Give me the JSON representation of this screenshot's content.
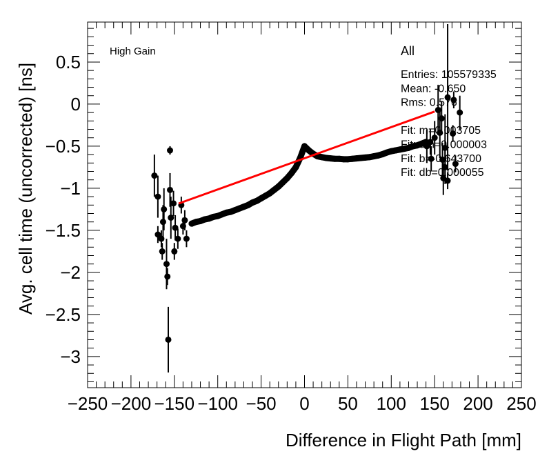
{
  "chart_data": {
    "type": "scatter",
    "xlabel": "Difference in Flight Path [mm]",
    "ylabel": "Avg. cell time (uncorrected) [ns]",
    "xlim": [
      -250,
      250
    ],
    "ylim": [
      -3.37,
      0.975
    ],
    "xticks": [
      -250,
      -200,
      -150,
      -100,
      -50,
      0,
      50,
      100,
      150,
      200,
      250
    ],
    "xtick_labels": [
      "−250",
      "−200",
      "−150",
      "−100",
      "−50",
      "0",
      "50",
      "100",
      "150",
      "200",
      "250"
    ],
    "yticks": [
      0.5,
      0,
      -0.5,
      -1,
      -1.5,
      -2,
      -2.5,
      -3
    ],
    "ytick_labels": [
      "0.5",
      "0",
      "−0.5",
      "−1",
      "−1.5",
      "−2",
      "−2.5",
      "−3"
    ],
    "grid": false,
    "marker_color": "#000000",
    "fit_color": "#ff0000",
    "annotations": {
      "gain": "High Gain"
    },
    "stats": {
      "title": "All",
      "lines": [
        "Entries: 105579335",
        "Mean: -0.650",
        "Rms: 0.576",
        "",
        "Fit: m=0.003705",
        "Fit: dm=0.000003",
        "Fit: b=-0.643700",
        "Fit: db=0.000055"
      ]
    },
    "fit": {
      "m": 0.003705,
      "b": -0.6437,
      "x_range": [
        -145,
        150
      ]
    },
    "series": [
      {
        "points": [
          [
            -130,
            -1.42
          ],
          [
            -125,
            -1.4
          ],
          [
            -120,
            -1.39
          ],
          [
            -115,
            -1.37
          ],
          [
            -110,
            -1.36
          ],
          [
            -105,
            -1.34
          ],
          [
            -100,
            -1.33
          ],
          [
            -95,
            -1.31
          ],
          [
            -90,
            -1.29
          ],
          [
            -85,
            -1.28
          ],
          [
            -80,
            -1.26
          ],
          [
            -75,
            -1.24
          ],
          [
            -70,
            -1.22
          ],
          [
            -65,
            -1.2
          ],
          [
            -60,
            -1.17
          ],
          [
            -55,
            -1.15
          ],
          [
            -50,
            -1.12
          ],
          [
            -45,
            -1.09
          ],
          [
            -40,
            -1.06
          ],
          [
            -35,
            -1.02
          ],
          [
            -30,
            -0.98
          ],
          [
            -25,
            -0.93
          ],
          [
            -20,
            -0.88
          ],
          [
            -15,
            -0.82
          ],
          [
            -10,
            -0.75
          ],
          [
            -5,
            -0.64
          ],
          [
            0,
            -0.5
          ],
          [
            5,
            -0.55
          ],
          [
            10,
            -0.59
          ],
          [
            15,
            -0.62
          ],
          [
            20,
            -0.63
          ],
          [
            25,
            -0.64
          ],
          [
            30,
            -0.645
          ],
          [
            35,
            -0.65
          ],
          [
            40,
            -0.65
          ],
          [
            45,
            -0.655
          ],
          [
            50,
            -0.655
          ],
          [
            55,
            -0.65
          ],
          [
            60,
            -0.645
          ],
          [
            65,
            -0.64
          ],
          [
            70,
            -0.635
          ],
          [
            75,
            -0.63
          ],
          [
            80,
            -0.62
          ],
          [
            85,
            -0.61
          ],
          [
            90,
            -0.595
          ],
          [
            95,
            -0.575
          ],
          [
            100,
            -0.56
          ],
          [
            105,
            -0.55
          ],
          [
            110,
            -0.54
          ],
          [
            115,
            -0.53
          ],
          [
            120,
            -0.52
          ],
          [
            125,
            -0.5
          ],
          [
            130,
            -0.49
          ],
          [
            135,
            -0.47
          ],
          [
            140,
            -0.45
          ]
        ]
      },
      {
        "points_with_errors": [
          [
            -173,
            -0.85,
            0.25
          ],
          [
            -169,
            -1.1,
            0.25
          ],
          [
            -162,
            -1.25,
            0.25
          ],
          [
            -163,
            -1.4,
            0.2
          ],
          [
            -169,
            -1.55,
            0.1
          ],
          [
            -165,
            -1.6,
            0.1
          ],
          [
            -164,
            -1.75,
            0.1
          ],
          [
            -159,
            -1.9,
            0.3
          ],
          [
            -158,
            -2.05,
            0.1
          ],
          [
            -157,
            -2.8,
            0.39
          ],
          [
            -155,
            -0.55,
            0.05
          ],
          [
            -155,
            -1.02,
            0.2
          ],
          [
            -154,
            -1.35,
            0.25
          ],
          [
            -151,
            -1.18,
            0.15
          ],
          [
            -150,
            -1.75,
            0.1
          ],
          [
            -149,
            -1.47,
            0.15
          ],
          [
            -146,
            -1.6,
            0.12
          ],
          [
            -142,
            -1.2,
            0.1
          ],
          [
            -136,
            -1.6,
            0.1
          ],
          [
            -140,
            -1.45,
            0.1
          ],
          [
            -138,
            -1.38,
            0.12
          ],
          [
            141,
            -0.5,
            0.2
          ],
          [
            146,
            -0.65,
            0.15
          ],
          [
            154,
            -0.07,
            0.3
          ],
          [
            165,
            0.08,
            0.87
          ],
          [
            172,
            0.05,
            0.1
          ],
          [
            179,
            -0.1,
            0.2
          ],
          [
            158,
            -0.17,
            0.2
          ],
          [
            156,
            -0.34,
            0.3
          ],
          [
            171,
            -0.35,
            0.1
          ],
          [
            162,
            -0.52,
            0.4
          ],
          [
            159,
            -0.66,
            0.2
          ],
          [
            174,
            -0.71,
            0.1
          ],
          [
            162,
            -0.75,
            0.2
          ],
          [
            160,
            -0.88,
            0.2
          ],
          [
            165,
            -0.91,
            0.1
          ],
          [
            150,
            -0.4,
            0.2
          ],
          [
            145,
            -0.45,
            0.15
          ]
        ]
      }
    ]
  }
}
